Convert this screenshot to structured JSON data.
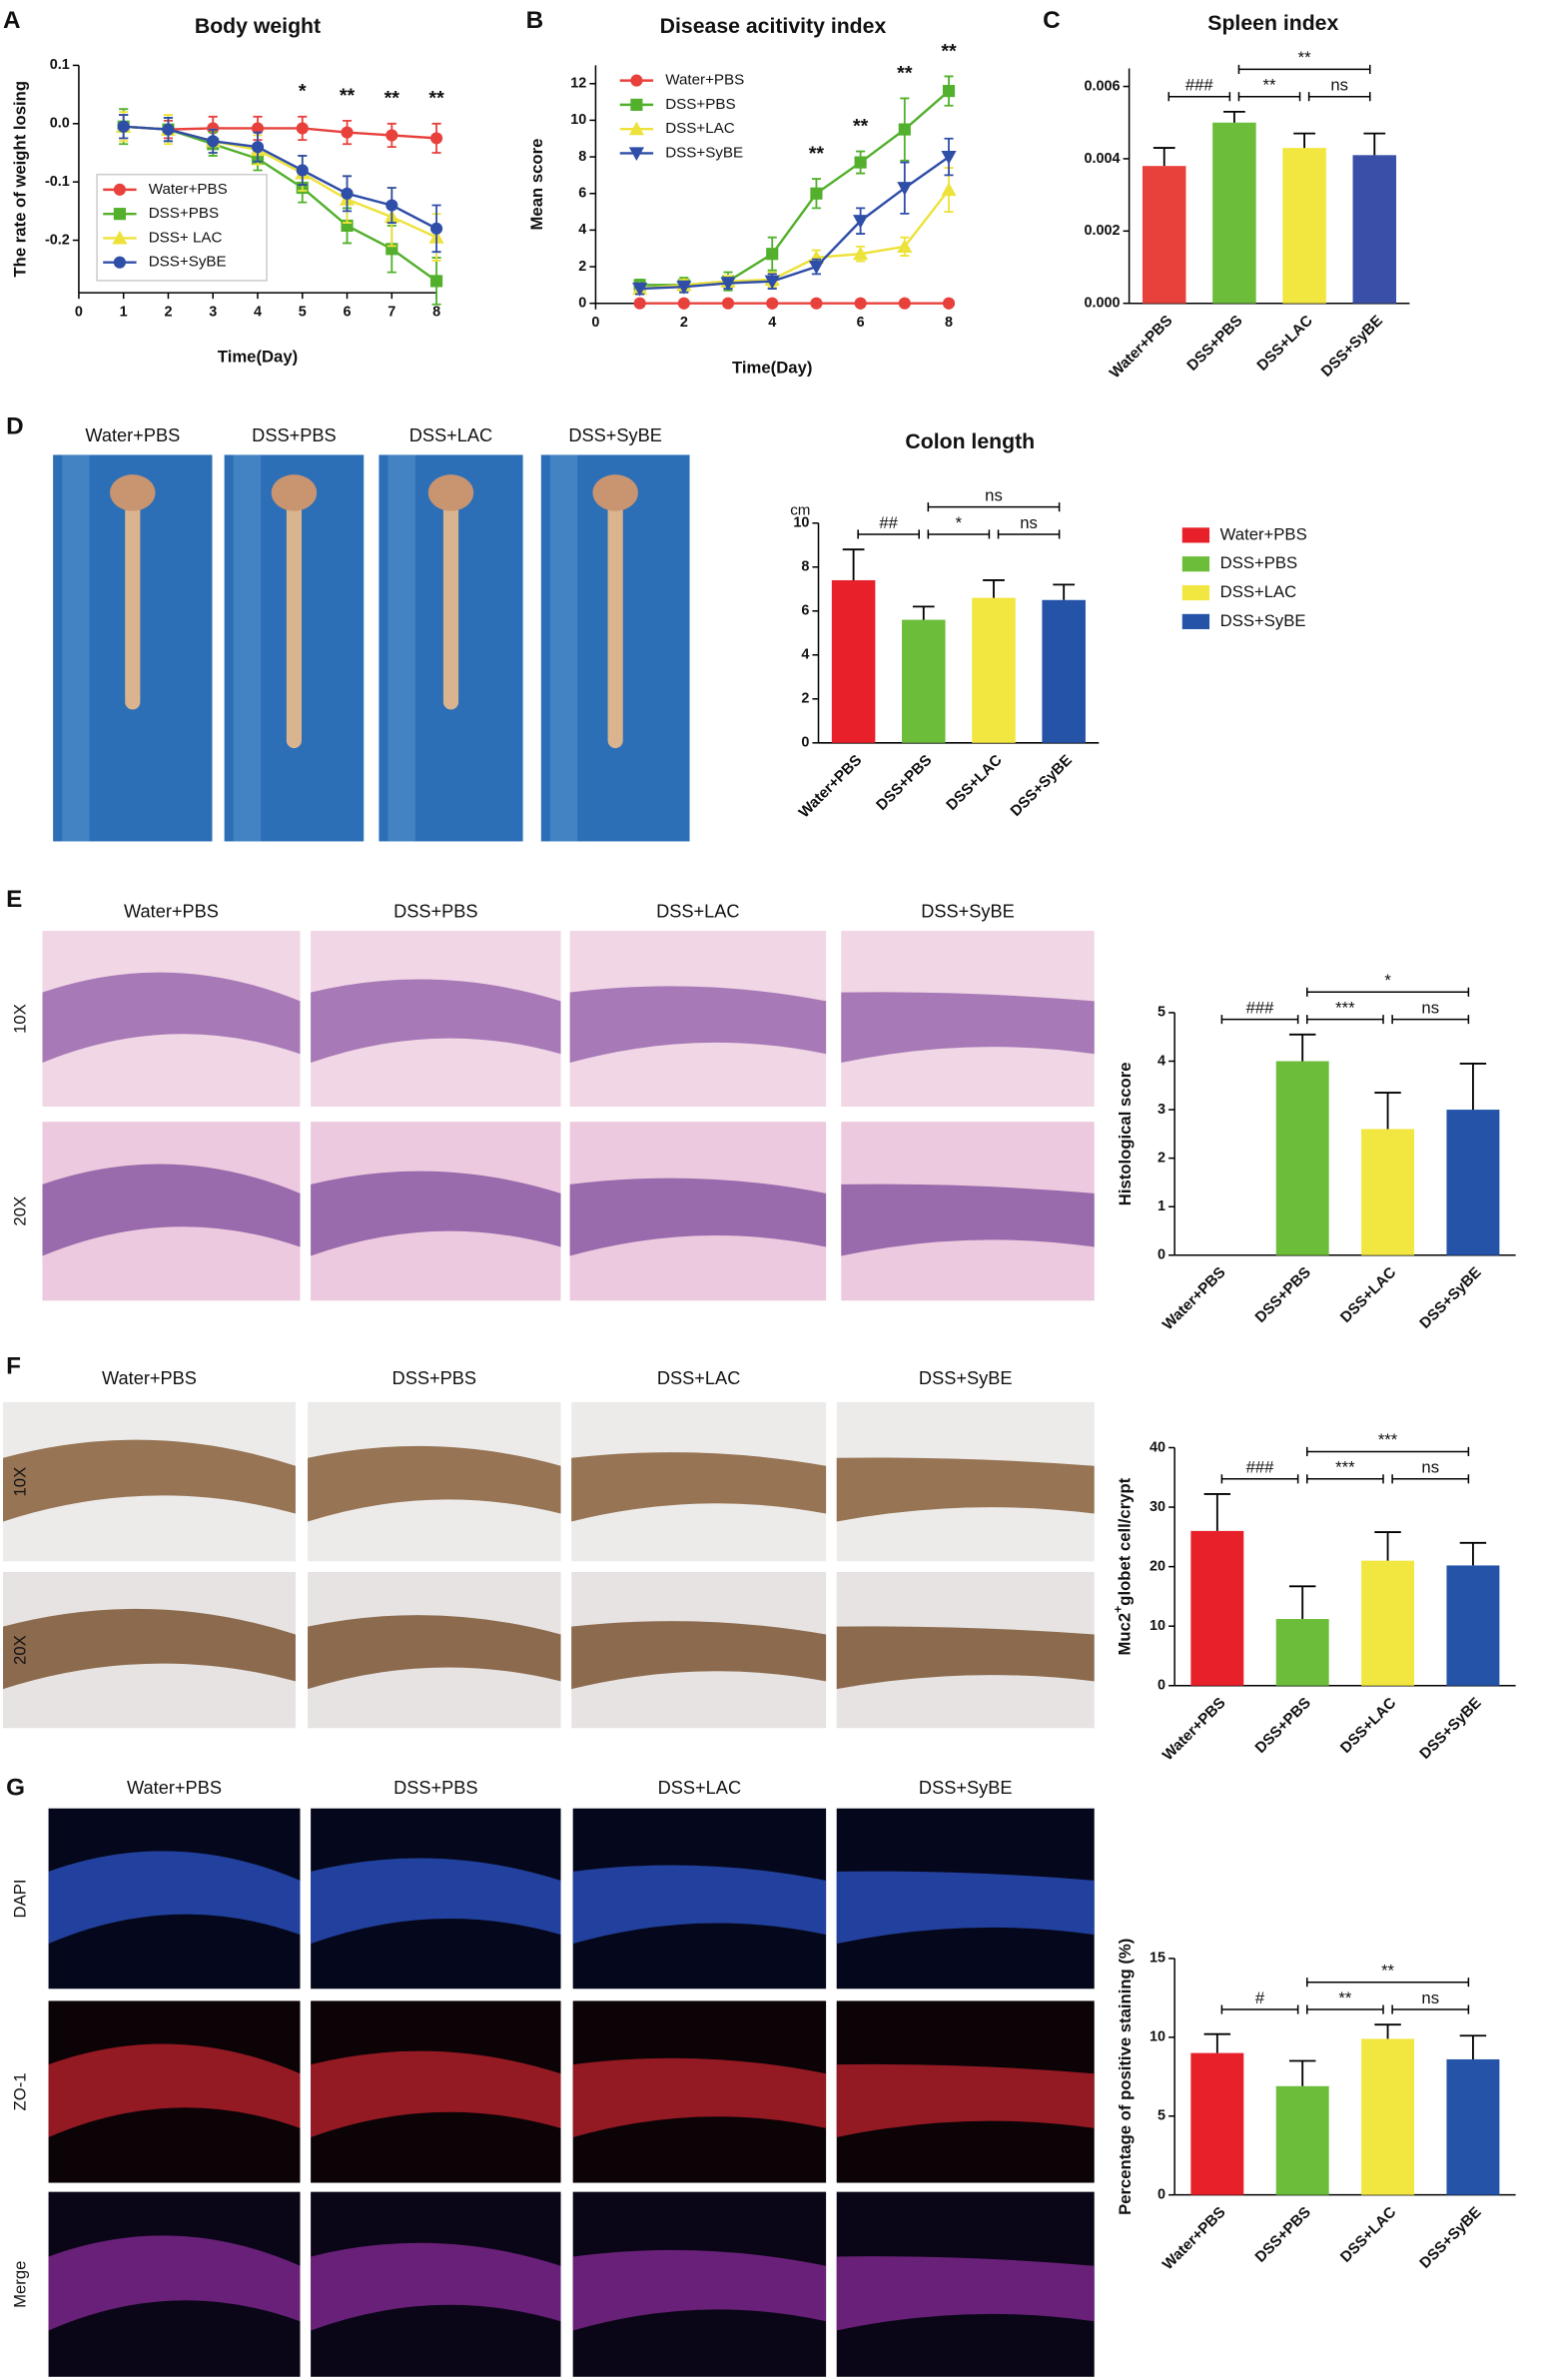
{
  "figure": {
    "letters": [
      "A",
      "B",
      "C",
      "D",
      "E",
      "F",
      "G"
    ],
    "photo_panels": [
      {
        "columns": [
          "Water+PBS",
          "DSS+PBS",
          "DSS+LAC",
          "DSS+SyBE"
        ]
      },
      {
        "columns": [
          "Water+PBS",
          "DSS+PBS",
          "DSS+LAC",
          "DSS+SyBE"
        ],
        "rows": [
          "10X",
          "20X"
        ]
      },
      {
        "columns": [
          "Water+PBS",
          "DSS+PBS",
          "DSS+LAC",
          "DSS+SyBE"
        ],
        "rows": [
          "10X",
          "20X"
        ]
      },
      {
        "columns": [
          "Water+PBS",
          "DSS+PBS",
          "DSS+LAC",
          "DSS+SyBE"
        ],
        "rows": [
          "DAPI",
          "ZO-1",
          "Merge"
        ]
      }
    ]
  },
  "chart_data": [
    {
      "type": "line",
      "title": "Body weight",
      "x_label": "Time(Day)",
      "y_label": "The rate of weight losing",
      "x": [
        1,
        2,
        3,
        4,
        5,
        6,
        7,
        8
      ],
      "xlim": [
        0,
        8
      ],
      "xticks": [
        0,
        1,
        2,
        3,
        4,
        5,
        6,
        7,
        8
      ],
      "ylim": [
        -0.29,
        0.1
      ],
      "yticks": [
        0.1,
        {
          "value": 0,
          "label": "0.0"
        },
        -0.1,
        -0.2
      ],
      "legend": "lower left",
      "series": [
        {
          "name": "Water+PBS",
          "color": "#e8413c",
          "marker": "circle",
          "values": [
            -0.005,
            -0.01,
            -0.008,
            -0.008,
            -0.008,
            -0.015,
            -0.02,
            -0.025
          ],
          "errors": [
            0.02,
            0.015,
            0.02,
            0.02,
            0.02,
            0.02,
            0.02,
            0.025
          ]
        },
        {
          "name": "DSS+PBS",
          "color": "#52b02c",
          "marker": "square",
          "values": [
            -0.005,
            -0.01,
            -0.035,
            -0.06,
            -0.11,
            -0.175,
            -0.215,
            -0.27
          ],
          "errors": [
            0.03,
            0.02,
            0.02,
            0.02,
            0.025,
            0.03,
            0.04,
            0.04
          ]
        },
        {
          "name": "DSS+ LAC",
          "color": "#ede23a",
          "marker": "triangle",
          "values": [
            -0.005,
            -0.01,
            -0.03,
            -0.045,
            -0.085,
            -0.13,
            -0.16,
            -0.195
          ],
          "errors": [
            0.025,
            0.025,
            0.02,
            0.025,
            0.03,
            0.04,
            0.05,
            0.04
          ]
        },
        {
          "name": "DSS+SyBE",
          "color": "#2f4ea8",
          "marker": "circle",
          "values": [
            -0.005,
            -0.01,
            -0.03,
            -0.04,
            -0.08,
            -0.12,
            -0.14,
            -0.18
          ],
          "errors": [
            0.02,
            0.02,
            0.02,
            0.025,
            0.025,
            0.03,
            0.03,
            0.04
          ]
        }
      ],
      "annotations": [
        {
          "x": 5,
          "text": "*"
        },
        {
          "x": 6,
          "text": "**"
        },
        {
          "x": 7,
          "text": "**"
        },
        {
          "x": 8,
          "text": "**"
        }
      ]
    },
    {
      "type": "line",
      "title": "Disease acitivity index",
      "x_label": "Time(Day)",
      "y_label": "Mean score",
      "x": [
        1,
        2,
        3,
        4,
        5,
        6,
        7,
        8
      ],
      "xlim": [
        0,
        8
      ],
      "xticks": [
        0,
        2,
        4,
        6,
        8
      ],
      "ylim": [
        0,
        13
      ],
      "yticks": [
        0,
        2,
        4,
        6,
        8,
        10,
        12
      ],
      "legend": "upper left",
      "series": [
        {
          "name": "Water+PBS",
          "color": "#e8413c",
          "marker": "circle",
          "values": [
            0,
            0,
            0,
            0,
            0,
            0,
            0,
            0
          ],
          "errors": [
            0,
            0,
            0,
            0,
            0,
            0,
            0,
            0
          ]
        },
        {
          "name": "DSS+PBS",
          "color": "#52b02c",
          "marker": "square",
          "values": [
            1,
            1,
            1.2,
            2.7,
            6,
            7.7,
            9.5,
            11.6
          ],
          "errors": [
            0.3,
            0.4,
            0.5,
            0.9,
            0.8,
            0.6,
            1.7,
            0.8
          ]
        },
        {
          "name": "DSS+LAC",
          "color": "#ede23a",
          "marker": "triangle",
          "values": [
            0.8,
            1,
            1.2,
            1.3,
            2.5,
            2.7,
            3.1,
            6.2
          ],
          "errors": [
            0.3,
            0.3,
            0.3,
            0.4,
            0.4,
            0.4,
            0.5,
            1.2
          ]
        },
        {
          "name": "DSS+SyBE",
          "color": "#2f4ea8",
          "marker": "triangle-down",
          "values": [
            0.8,
            0.9,
            1.1,
            1.2,
            2,
            4.5,
            6.3,
            8
          ],
          "errors": [
            0.3,
            0.3,
            0.3,
            0.4,
            0.4,
            0.7,
            1.4,
            1
          ]
        }
      ],
      "annotations": [
        {
          "x": 5,
          "text": "**"
        },
        {
          "x": 6,
          "text": "**"
        },
        {
          "x": 7,
          "text": "**"
        },
        {
          "x": 8,
          "text": "**"
        }
      ]
    },
    {
      "type": "bar",
      "title": "Spleen index",
      "categories": [
        "Water+PBS",
        "DSS+PBS",
        "DSS+LAC",
        "DSS+SyBE"
      ],
      "values": [
        0.0038,
        0.005,
        0.0043,
        0.0041
      ],
      "errors": [
        0.0005,
        0.0003,
        0.0004,
        0.0006
      ],
      "colors": [
        "#e8413c",
        "#6cbd3a",
        "#f2e640",
        "#3a50a8"
      ],
      "ylim": [
        0,
        0.0065
      ],
      "yticks": [
        {
          "value": 0,
          "label": "0.000"
        },
        {
          "value": 0.002,
          "label": "0.002"
        },
        {
          "value": 0.004,
          "label": "0.004"
        },
        {
          "value": 0.006,
          "label": "0.006"
        }
      ],
      "comparisons": [
        {
          "from": 0,
          "to": 1,
          "label": "###"
        },
        {
          "from": 1,
          "to": 2,
          "label": "**"
        },
        {
          "from": 2,
          "to": 3,
          "label": "ns"
        },
        {
          "from": 1,
          "to": 3,
          "label": "**"
        }
      ]
    },
    {
      "type": "bar",
      "title": "Colon length",
      "y_unit": "cm",
      "categories": [
        "Water+PBS",
        "DSS+PBS",
        "DSS+LAC",
        "DSS+SyBE"
      ],
      "values": [
        7.4,
        5.6,
        6.6,
        6.5
      ],
      "errors": [
        1.4,
        0.6,
        0.8,
        0.7
      ],
      "colors": [
        "#e8202a",
        "#6cbd3a",
        "#f2e640",
        "#2453a8"
      ],
      "ylim": [
        0,
        10
      ],
      "yticks": [
        0,
        2,
        4,
        6,
        8,
        10
      ],
      "legend": "right",
      "comparisons": [
        {
          "from": 0,
          "to": 1,
          "label": "##"
        },
        {
          "from": 1,
          "to": 2,
          "label": "*"
        },
        {
          "from": 2,
          "to": 3,
          "label": "ns"
        },
        {
          "from": 1,
          "to": 3,
          "label": "ns"
        }
      ]
    },
    {
      "type": "bar",
      "y_label": "Histological score",
      "categories": [
        "Water+PBS",
        "DSS+PBS",
        "DSS+LAC",
        "DSS+SyBE"
      ],
      "values": [
        0,
        4,
        2.6,
        3
      ],
      "errors": [
        0,
        0.55,
        0.75,
        0.95
      ],
      "colors": [
        "#e8202a",
        "#6cbd3a",
        "#f2e640",
        "#2453a8"
      ],
      "ylim": [
        0,
        5
      ],
      "yticks": [
        0,
        1,
        2,
        3,
        4,
        5
      ],
      "comparisons": [
        {
          "from": 0,
          "to": 1,
          "label": "###"
        },
        {
          "from": 1,
          "to": 2,
          "label": "***"
        },
        {
          "from": 2,
          "to": 3,
          "label": "ns"
        },
        {
          "from": 1,
          "to": 3,
          "label": "*"
        }
      ]
    },
    {
      "type": "bar",
      "y_label": [
        "Muc2",
        "+",
        "globet cell/crypt"
      ],
      "categories": [
        "Water+PBS",
        "DSS+PBS",
        "DSS+LAC",
        "DSS+SyBE"
      ],
      "values": [
        26,
        11.2,
        21,
        20.2
      ],
      "errors": [
        6.2,
        5.5,
        4.8,
        3.8
      ],
      "colors": [
        "#e8202a",
        "#6cbd3a",
        "#f2e640",
        "#2453a8"
      ],
      "ylim": [
        0,
        40
      ],
      "yticks": [
        0,
        10,
        20,
        30,
        40
      ],
      "comparisons": [
        {
          "from": 0,
          "to": 1,
          "label": "###"
        },
        {
          "from": 1,
          "to": 2,
          "label": "***"
        },
        {
          "from": 2,
          "to": 3,
          "label": "ns"
        },
        {
          "from": 1,
          "to": 3,
          "label": "***"
        }
      ]
    },
    {
      "type": "bar",
      "y_label": "Percentage of positive staining (%)",
      "categories": [
        "Water+PBS",
        "DSS+PBS",
        "DSS+LAC",
        "DSS+SyBE"
      ],
      "values": [
        9,
        6.9,
        9.9,
        8.6
      ],
      "errors": [
        1.2,
        1.6,
        0.9,
        1.5
      ],
      "colors": [
        "#e8202a",
        "#6cbd3a",
        "#f2e640",
        "#2453a8"
      ],
      "ylim": [
        0,
        15
      ],
      "yticks": [
        0,
        5,
        10,
        15
      ],
      "comparisons": [
        {
          "from": 0,
          "to": 1,
          "label": "#"
        },
        {
          "from": 1,
          "to": 2,
          "label": "**"
        },
        {
          "from": 2,
          "to": 3,
          "label": "ns"
        },
        {
          "from": 1,
          "to": 3,
          "label": "**"
        }
      ]
    }
  ]
}
